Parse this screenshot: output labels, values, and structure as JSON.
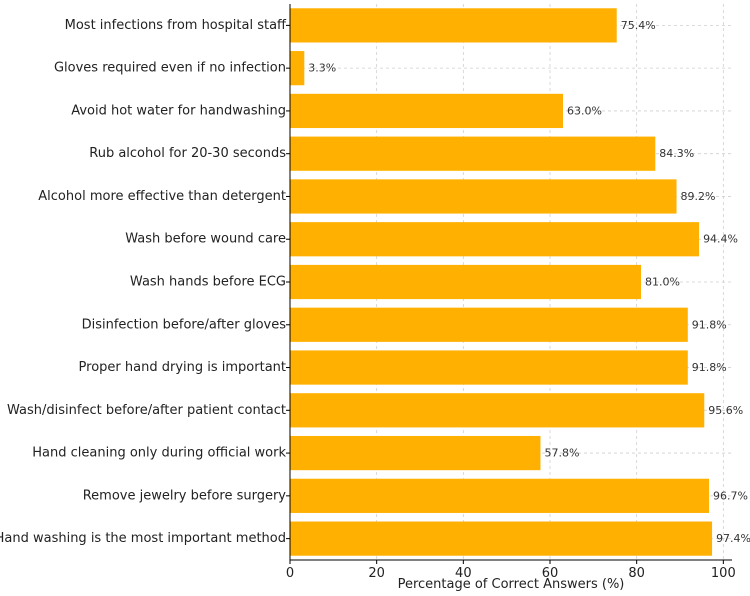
{
  "chart_data": {
    "type": "bar",
    "orientation": "horizontal",
    "categories": [
      "Most infections from hospital staff",
      "Gloves required even if no infection",
      "Avoid hot water for handwashing",
      "Rub alcohol for 20-30 seconds",
      "Alcohol more effective than detergent",
      "Wash before wound care",
      "Wash hands before ECG",
      "Disinfection before/after gloves",
      "Proper hand drying is important",
      "Wash/disinfect before/after patient contact",
      "Hand cleaning only during official work",
      "Remove jewelry before surgery",
      "Hand washing is the most important method"
    ],
    "values": [
      75.4,
      3.3,
      63.0,
      84.3,
      89.2,
      94.4,
      81.0,
      91.8,
      91.8,
      95.6,
      57.8,
      96.7,
      97.4
    ],
    "value_labels": [
      "75.4%",
      "3.3%",
      "63.0%",
      "84.3%",
      "89.2%",
      "94.4%",
      "81.0%",
      "91.8%",
      "91.8%",
      "95.6%",
      "57.8%",
      "96.7%",
      "97.4%"
    ],
    "xlabel": "Percentage of Correct Answers (%)",
    "ylabel": "",
    "title": "",
    "xlim": [
      0,
      102
    ],
    "xticks": [
      0,
      20,
      40,
      60,
      80,
      100
    ],
    "xtick_labels": [
      "0",
      "20",
      "40",
      "60",
      "80",
      "100"
    ],
    "grid": true,
    "bar_color": "#FFB000"
  }
}
